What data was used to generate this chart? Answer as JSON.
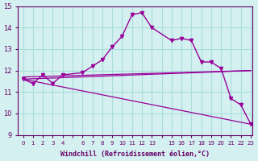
{
  "xlabel": "Windchill (Refroidissement éolien,°C)",
  "background_color": "#d4f0f0",
  "grid_color": "#aadddd",
  "line_color": "#990099",
  "xlim": [
    -0.5,
    23.2
  ],
  "ylim": [
    9,
    15
  ],
  "yticks": [
    9,
    10,
    11,
    12,
    13,
    14,
    15
  ],
  "xtick_positions": [
    0,
    1,
    2,
    3,
    4,
    5,
    6,
    7,
    8,
    9,
    10,
    11,
    12,
    13,
    14,
    15,
    16,
    17,
    18,
    19,
    20,
    21,
    22,
    23
  ],
  "xtick_labels": [
    "0",
    "1",
    "2",
    "3",
    "4",
    "",
    "6",
    "7",
    "8",
    "9",
    "10",
    "11",
    "12",
    "13",
    "",
    "15",
    "16",
    "17",
    "18",
    "19",
    "20",
    "21",
    "22",
    "23"
  ],
  "series1_x": [
    0,
    1,
    2,
    3,
    4,
    6,
    7,
    8,
    9,
    10,
    11,
    12,
    13,
    15,
    16,
    17,
    18,
    19,
    20,
    21,
    22,
    23
  ],
  "series1_y": [
    11.6,
    11.4,
    11.8,
    11.4,
    11.8,
    11.9,
    12.2,
    12.5,
    13.1,
    13.6,
    14.6,
    14.7,
    14.0,
    13.4,
    13.5,
    13.4,
    12.4,
    12.4,
    12.1,
    10.7,
    10.4,
    9.5
  ],
  "series2_x": [
    0,
    23
  ],
  "series2_y": [
    11.6,
    12.0
  ],
  "series3_x": [
    0,
    23
  ],
  "series3_y": [
    11.6,
    9.5
  ],
  "series4_x": [
    0,
    23
  ],
  "series4_y": [
    11.7,
    12.0
  ]
}
